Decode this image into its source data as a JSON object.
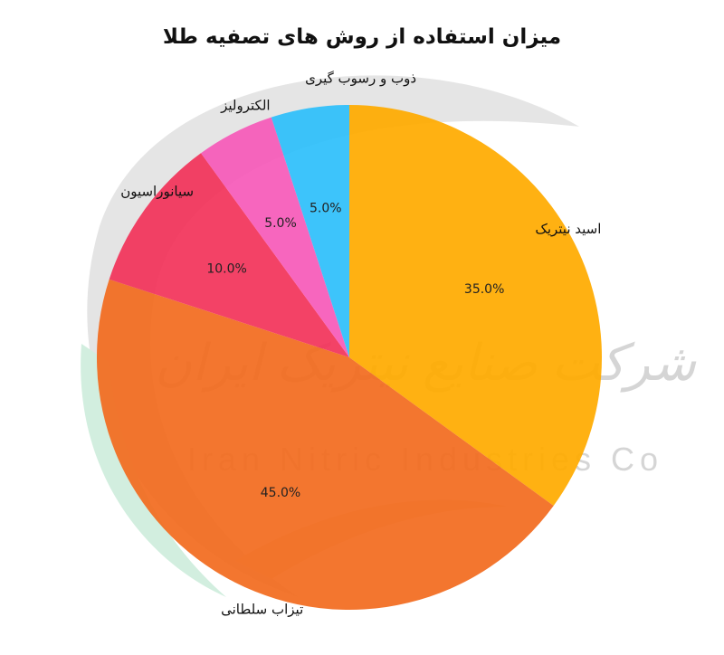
{
  "chart_data": {
    "type": "pie",
    "title": "میزان استفاده از روش های تصفیه طلا",
    "slices": [
      {
        "label": "اسید نیتریک",
        "value": 35.0,
        "value_label": "35.0%",
        "color": "#FFAB00"
      },
      {
        "label": "تیزاب سلطانی",
        "value": 45.0,
        "value_label": "45.0%",
        "color": "#F26C1F"
      },
      {
        "label": "سیانوراسیون",
        "value": 10.0,
        "value_label": "10.0%",
        "color": "#F2345A"
      },
      {
        "label": "الکترولیز",
        "value": 5.0,
        "value_label": "5.0%",
        "color": "#F65AB9"
      },
      {
        "label": "ذوب و رسوب گیری",
        "value": 5.0,
        "value_label": "5.0%",
        "color": "#2EBFFB"
      }
    ],
    "start": "top",
    "direction": "clockwise",
    "legend": "none"
  },
  "watermark": {
    "name_fa": "شرکت صنایع نیتریک ایران",
    "name_en": "Iran Nitric Industries Co"
  }
}
